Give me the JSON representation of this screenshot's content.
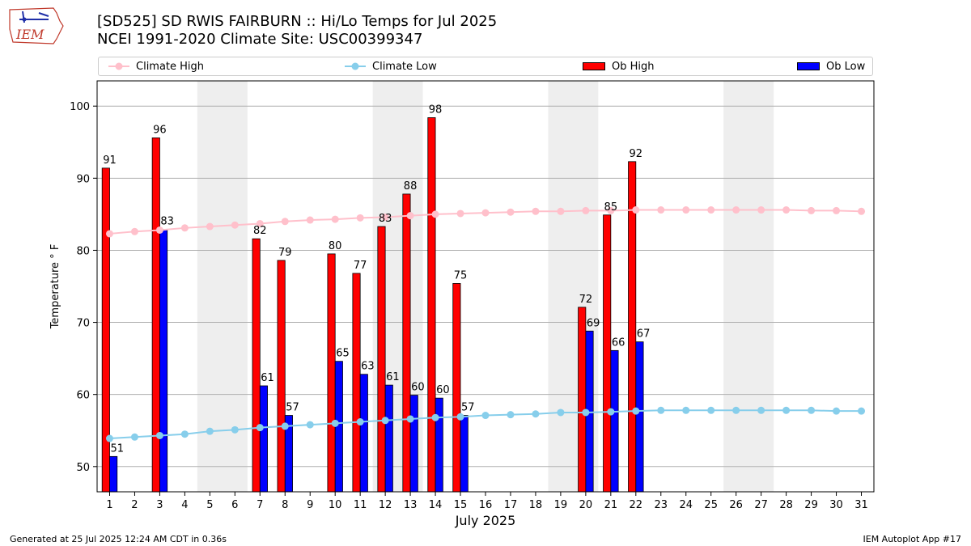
{
  "header": {
    "logo_text": "IEM",
    "title": "[SD525] SD RWIS FAIRBURN :: Hi/Lo Temps for Jul 2025",
    "subtitle": "NCEI 1991-2020 Climate Site: USC00399347"
  },
  "footer": {
    "generated": "Generated at 25 Jul 2025 12:24 AM CDT in 0.36s",
    "app": "IEM Autoplot App #17"
  },
  "colors": {
    "climate_high": "#ffc0cb",
    "climate_low": "#87ceeb",
    "ob_high": "#ff0000",
    "ob_low": "#0000ff",
    "weekend_shade": "#eeeeee",
    "grid": "#b0b0b0"
  },
  "chart_data": {
    "type": "bar",
    "xlabel": "July 2025",
    "ylabel": "Temperature ° F",
    "ylim": [
      46.5,
      103.5
    ],
    "yticks": [
      50,
      60,
      70,
      80,
      90,
      100
    ],
    "grid": true,
    "legend_position": "top",
    "days": [
      1,
      2,
      3,
      4,
      5,
      6,
      7,
      8,
      9,
      10,
      11,
      12,
      13,
      14,
      15,
      16,
      17,
      18,
      19,
      20,
      21,
      22,
      23,
      24,
      25,
      26,
      27,
      28,
      29,
      30,
      31
    ],
    "weekend_spans": [
      [
        5,
        6
      ],
      [
        12,
        13
      ],
      [
        19,
        20
      ],
      [
        26,
        27
      ]
    ],
    "series": [
      {
        "name": "Climate High",
        "kind": "line",
        "values": [
          82.3,
          82.6,
          82.8,
          83.1,
          83.3,
          83.5,
          83.7,
          84.0,
          84.2,
          84.3,
          84.5,
          84.6,
          84.8,
          85.0,
          85.1,
          85.2,
          85.3,
          85.4,
          85.4,
          85.5,
          85.5,
          85.6,
          85.6,
          85.6,
          85.6,
          85.6,
          85.6,
          85.6,
          85.5,
          85.5,
          85.4
        ]
      },
      {
        "name": "Climate Low",
        "kind": "line",
        "values": [
          53.9,
          54.1,
          54.3,
          54.5,
          54.9,
          55.1,
          55.4,
          55.6,
          55.8,
          56.0,
          56.2,
          56.4,
          56.6,
          56.8,
          56.9,
          57.1,
          57.2,
          57.3,
          57.5,
          57.5,
          57.6,
          57.7,
          57.8,
          57.8,
          57.8,
          57.8,
          57.8,
          57.8,
          57.8,
          57.7,
          57.7
        ]
      },
      {
        "name": "Ob High",
        "kind": "bar",
        "values": [
          91.4,
          null,
          95.6,
          null,
          null,
          null,
          81.6,
          78.6,
          null,
          79.5,
          76.8,
          83.3,
          87.8,
          98.4,
          75.4,
          null,
          null,
          null,
          null,
          72.1,
          84.9,
          92.3,
          null,
          null,
          null,
          null,
          null,
          null,
          null,
          null,
          null
        ],
        "labels": [
          "91",
          "",
          "96",
          "",
          "",
          "",
          "82",
          "79",
          "",
          "80",
          "77",
          "83",
          "88",
          "98",
          "75",
          "",
          "",
          "",
          "",
          "72",
          "85",
          "92",
          "",
          "",
          "",
          "",
          "",
          "",
          "",
          "",
          ""
        ]
      },
      {
        "name": "Ob Low",
        "kind": "bar",
        "values": [
          51.4,
          null,
          82.9,
          null,
          null,
          null,
          61.2,
          57.1,
          null,
          64.6,
          62.8,
          61.3,
          59.9,
          59.5,
          57.1,
          null,
          null,
          null,
          null,
          68.8,
          66.1,
          67.3,
          null,
          null,
          null,
          null,
          null,
          null,
          null,
          null,
          null
        ],
        "labels": [
          "51",
          "",
          "83",
          "",
          "",
          "",
          "61",
          "57",
          "",
          "65",
          "63",
          "61",
          "60",
          "60",
          "57",
          "",
          "",
          "",
          "",
          "69",
          "66",
          "67",
          "",
          "",
          "",
          "",
          "",
          "",
          "",
          "",
          ""
        ]
      }
    ]
  }
}
